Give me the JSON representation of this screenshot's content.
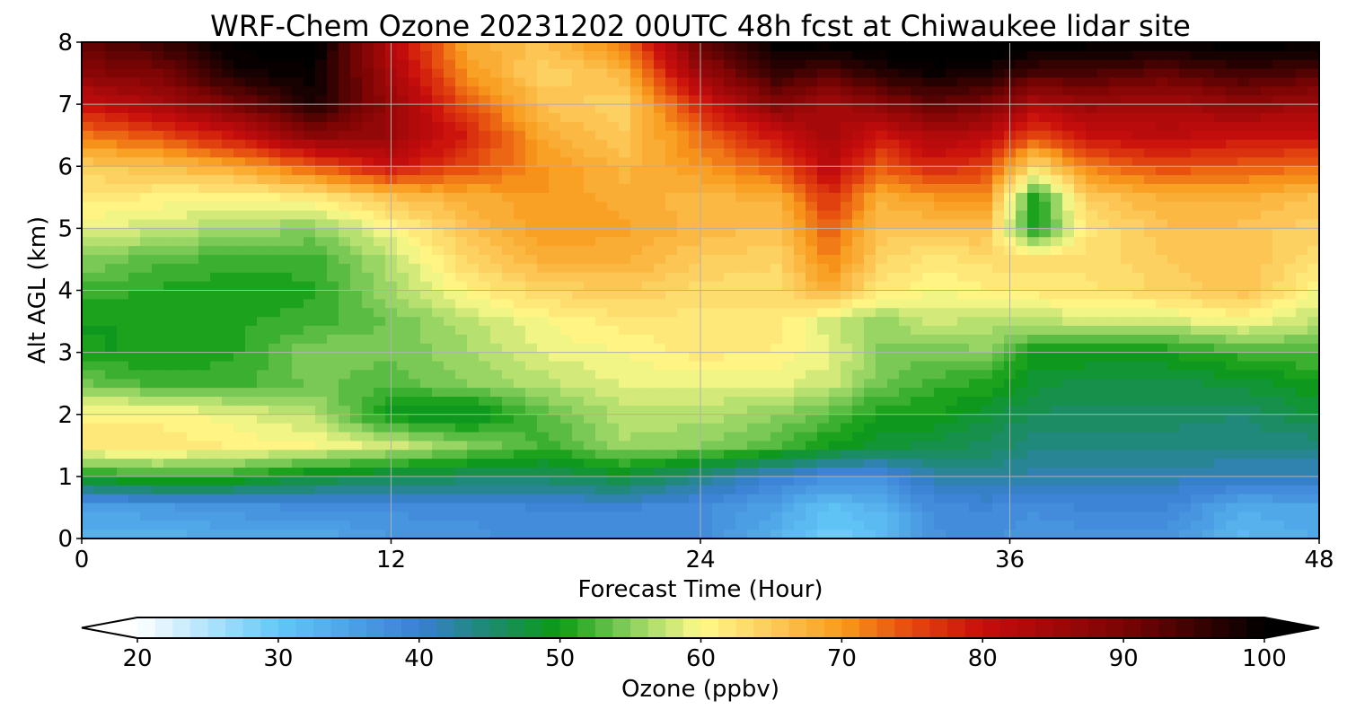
{
  "chart_data": {
    "type": "heatmap",
    "title": "WRF-Chem Ozone  20231202 00UTC 48h fcst at Chiwaukee lidar site",
    "xlabel": "Forecast Time (Hour)",
    "ylabel": "Alt AGL (km)",
    "xlim": [
      0,
      48
    ],
    "ylim": [
      0,
      8
    ],
    "xticks": [
      0,
      12,
      24,
      36,
      48
    ],
    "yticks": [
      0,
      1,
      2,
      3,
      4,
      5,
      6,
      7,
      8
    ],
    "grid": true,
    "x": [
      0,
      3,
      6,
      9,
      12,
      15,
      18,
      21,
      24,
      27,
      29,
      31,
      33,
      35,
      37,
      39,
      42,
      45,
      48
    ],
    "y": [
      0.0,
      0.5,
      1.0,
      1.5,
      2.0,
      2.5,
      3.0,
      3.5,
      4.0,
      4.5,
      5.0,
      5.5,
      6.0,
      6.5,
      7.0,
      7.5,
      8.0
    ],
    "z": [
      [
        33,
        33,
        34,
        34,
        36,
        37,
        38,
        38,
        38,
        33,
        29,
        31,
        37,
        38,
        36,
        37,
        37,
        32,
        34
      ],
      [
        35,
        36,
        37,
        38,
        38,
        38,
        39,
        39,
        38,
        35,
        31,
        33,
        38,
        39,
        38,
        39,
        39,
        34,
        35
      ],
      [
        50,
        52,
        51,
        48,
        47,
        46,
        46,
        48,
        44,
        40,
        38,
        38,
        42,
        43,
        42,
        42,
        42,
        41,
        41
      ],
      [
        62,
        62,
        61,
        60,
        58,
        55,
        52,
        56,
        55,
        53,
        50,
        48,
        47,
        46,
        44,
        44,
        44,
        44,
        44
      ],
      [
        61,
        61,
        59,
        57,
        49,
        48,
        53,
        57,
        57,
        55,
        53,
        50,
        50,
        48,
        46,
        46,
        46,
        45,
        48
      ],
      [
        54,
        52,
        52,
        54,
        53,
        55,
        57,
        59,
        59,
        59,
        58,
        54,
        52,
        51,
        48,
        47,
        47,
        48,
        50
      ],
      [
        50,
        50,
        51,
        55,
        54,
        56,
        59,
        60,
        62,
        61,
        59,
        55,
        54,
        55,
        50,
        50,
        50,
        52,
        53
      ],
      [
        50,
        50,
        51,
        52,
        54,
        57,
        60,
        62,
        62,
        62,
        58,
        55,
        58,
        57,
        57,
        58,
        58,
        60,
        57
      ],
      [
        52,
        51,
        50,
        51,
        56,
        61,
        64,
        65,
        63,
        63,
        68,
        62,
        60,
        61,
        62,
        62,
        64,
        66,
        60
      ],
      [
        55,
        53,
        52,
        52,
        57,
        64,
        68,
        68,
        65,
        64,
        72,
        64,
        62,
        63,
        63,
        63,
        65,
        66,
        63
      ],
      [
        59,
        58,
        56,
        55,
        60,
        66,
        70,
        69,
        67,
        66,
        74,
        66,
        66,
        67,
        49,
        62,
        66,
        66,
        64
      ],
      [
        62,
        61,
        60,
        62,
        66,
        68,
        70,
        68,
        67,
        68,
        77,
        68,
        70,
        71,
        50,
        65,
        68,
        68,
        66
      ],
      [
        65,
        66,
        69,
        74,
        80,
        75,
        70,
        67,
        70,
        74,
        82,
        74,
        78,
        76,
        63,
        72,
        75,
        74,
        73
      ],
      [
        72,
        75,
        80,
        88,
        86,
        78,
        68,
        65,
        73,
        80,
        85,
        79,
        84,
        82,
        75,
        80,
        82,
        80,
        80
      ],
      [
        80,
        84,
        90,
        98,
        86,
        74,
        66,
        64,
        78,
        89,
        84,
        88,
        92,
        90,
        83,
        86,
        84,
        87,
        85
      ],
      [
        88,
        90,
        98,
        100,
        84,
        70,
        64,
        67,
        86,
        96,
        93,
        97,
        99,
        98,
        94,
        94,
        92,
        95,
        93
      ],
      [
        92,
        95,
        101,
        101,
        82,
        68,
        66,
        72,
        92,
        101,
        101,
        102,
        103,
        103,
        102,
        101,
        101,
        101,
        101
      ]
    ]
  },
  "colorbar": {
    "label": "Ozone  (ppbv)",
    "min": 20,
    "max": 100,
    "ticks": [
      20,
      30,
      40,
      50,
      60,
      70,
      80,
      90,
      100
    ],
    "step": 1.25,
    "stops": [
      {
        "value": 20,
        "color": "#ffffff"
      },
      {
        "value": 30,
        "color": "#63c8f8"
      },
      {
        "value": 40,
        "color": "#3a7ed4"
      },
      {
        "value": 45,
        "color": "#1d8a6e"
      },
      {
        "value": 50,
        "color": "#0c9b12"
      },
      {
        "value": 55,
        "color": "#8ad060"
      },
      {
        "value": 60,
        "color": "#fffa8a"
      },
      {
        "value": 65,
        "color": "#fccb5c"
      },
      {
        "value": 70,
        "color": "#f99b1c"
      },
      {
        "value": 75,
        "color": "#e4480f"
      },
      {
        "value": 80,
        "color": "#c80c0c"
      },
      {
        "value": 90,
        "color": "#7a0404"
      },
      {
        "value": 100,
        "color": "#000000"
      }
    ]
  }
}
